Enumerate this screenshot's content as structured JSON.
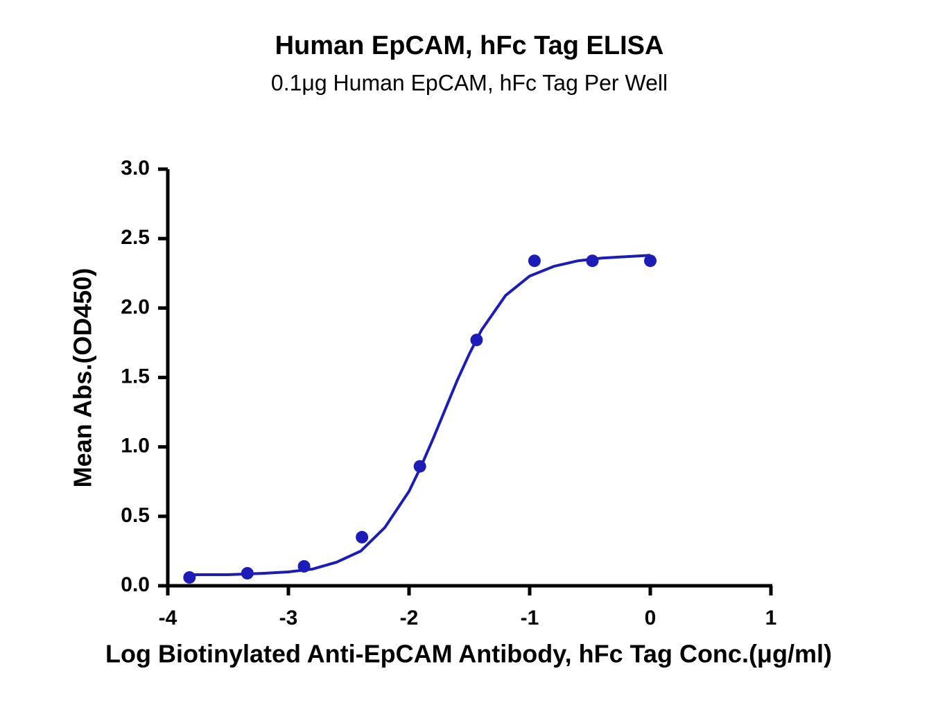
{
  "chart_data": {
    "type": "scatter",
    "title": "Human EpCAM, hFc Tag ELISA",
    "subtitle": "0.1μg Human EpCAM, hFc Tag Per Well",
    "x_label": "Log Biotinylated Anti-EpCAM Antibody, hFc Tag Conc.(μg/ml)",
    "y_label": "Mean Abs.(OD450)",
    "xlim": [
      -4,
      1
    ],
    "xticks": [
      -4,
      -3,
      -2,
      -1,
      0,
      1
    ],
    "ylim": [
      0,
      3
    ],
    "yticks": [
      {
        "value": 0,
        "label": "0.0"
      },
      0.5,
      {
        "value": 1,
        "label": "1.0"
      },
      1.5,
      {
        "value": 2,
        "label": "2.0"
      },
      2.5,
      {
        "value": 3,
        "label": "3.0"
      }
    ],
    "series": [
      {
        "color": "#1c1cb8",
        "marker": "circle",
        "x": [
          -3.82,
          -3.34,
          -2.87,
          -2.39,
          -1.91,
          -1.44,
          -0.96,
          -0.48,
          0
        ],
        "values": [
          0.06,
          0.09,
          0.14,
          0.35,
          0.86,
          1.77,
          2.34,
          2.34,
          2.34
        ]
      },
      {
        "color": "#1c1cb8",
        "marker": "line",
        "x": [
          -3.82,
          -3.5,
          -3.2,
          -3.0,
          -2.8,
          -2.6,
          -2.4,
          -2.2,
          -2.0,
          -1.9,
          -1.8,
          -1.7,
          -1.6,
          -1.5,
          -1.4,
          -1.2,
          -1.0,
          -0.8,
          -0.6,
          -0.4,
          -0.2,
          0
        ],
        "values": [
          0.08,
          0.08,
          0.09,
          0.1,
          0.12,
          0.17,
          0.25,
          0.42,
          0.68,
          0.86,
          1.06,
          1.27,
          1.48,
          1.67,
          1.84,
          2.09,
          2.23,
          2.3,
          2.34,
          2.36,
          2.37,
          2.38
        ]
      }
    ]
  }
}
